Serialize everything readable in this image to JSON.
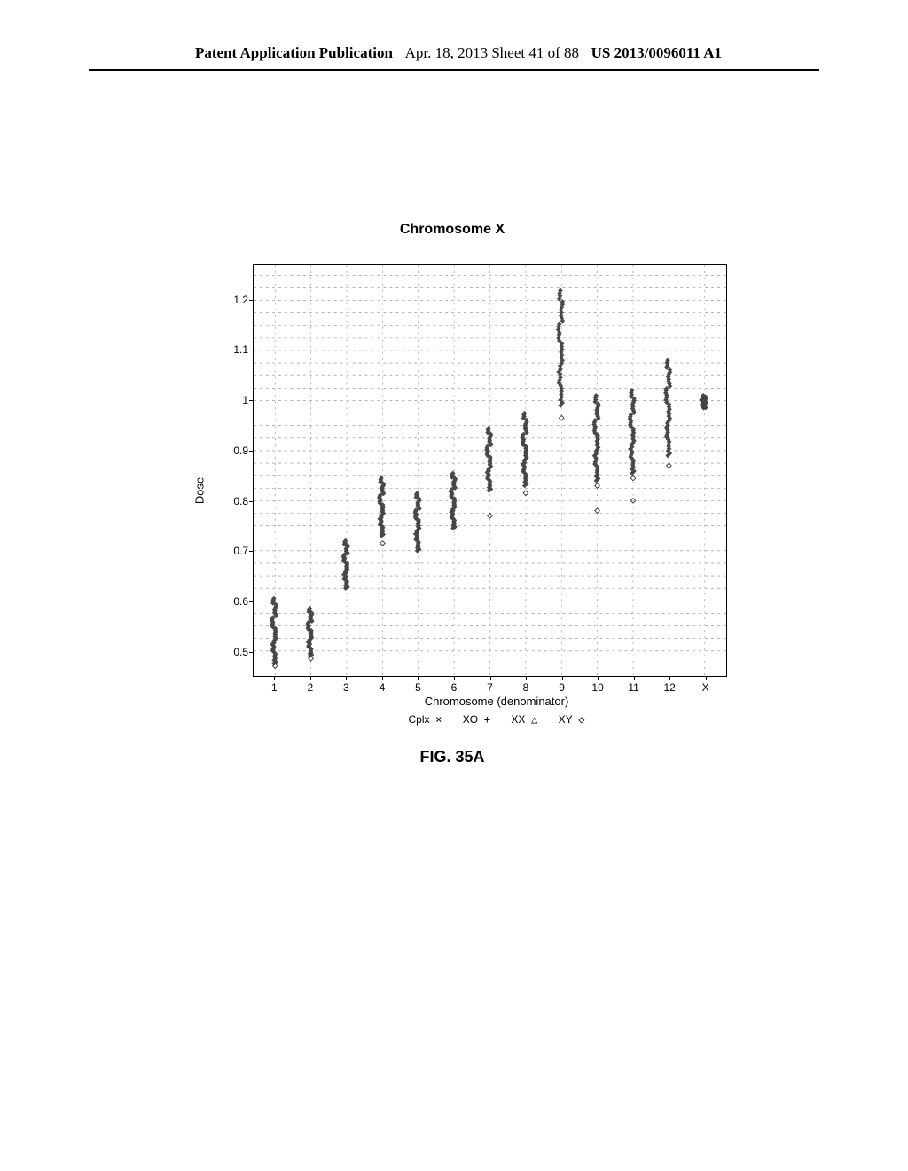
{
  "header": {
    "left": "Patent Application Publication",
    "mid": "Apr. 18, 2013  Sheet 41 of 88",
    "right": "US 2013/0096011 A1"
  },
  "chart": {
    "type": "scatter",
    "title": "Chromosome X",
    "ylabel": "Dose",
    "xlabel": "Chromosome (denominator)",
    "ylim": [
      0.45,
      1.27
    ],
    "yticks": [
      0.5,
      0.6,
      0.7,
      0.8,
      0.9,
      1,
      1.1,
      1.2
    ],
    "xcats": [
      "1",
      "2",
      "3",
      "4",
      "5",
      "6",
      "7",
      "8",
      "9",
      "10",
      "11",
      "12",
      "X"
    ],
    "grid_h_step": 0.025,
    "grid_color": "#888888",
    "border_color": "#000000",
    "marker_color": "#4a4a4a",
    "marker_stroke": "#333333",
    "columns": [
      {
        "x": "1",
        "lo": 0.475,
        "hi": 0.605,
        "outlier": 0.47
      },
      {
        "x": "2",
        "lo": 0.49,
        "hi": 0.585,
        "outlier": 0.485
      },
      {
        "x": "3",
        "lo": 0.625,
        "hi": 0.72
      },
      {
        "x": "4",
        "lo": 0.73,
        "hi": 0.845,
        "outlier": 0.715
      },
      {
        "x": "5",
        "lo": 0.7,
        "hi": 0.815
      },
      {
        "x": "6",
        "lo": 0.745,
        "hi": 0.855
      },
      {
        "x": "7",
        "lo": 0.82,
        "hi": 0.945,
        "outlier": 0.77
      },
      {
        "x": "8",
        "lo": 0.83,
        "hi": 0.975,
        "outlier": 0.815
      },
      {
        "x": "9",
        "lo": 0.99,
        "hi": 1.22,
        "outlier": 0.965
      },
      {
        "x": "10",
        "lo": 0.84,
        "hi": 1.01,
        "outliers": [
          0.78,
          0.83
        ]
      },
      {
        "x": "11",
        "lo": 0.855,
        "hi": 1.02,
        "outliers": [
          0.8,
          0.845
        ]
      },
      {
        "x": "12",
        "lo": 0.89,
        "hi": 1.08,
        "outlier": 0.87
      },
      {
        "x": "X",
        "lo": 0.985,
        "hi": 1.01
      }
    ],
    "legend": [
      {
        "label": "Cplx",
        "sym": "×"
      },
      {
        "label": "XO",
        "sym": "+"
      },
      {
        "label": "XX",
        "sym": "△"
      },
      {
        "label": "XY",
        "sym": "◇"
      }
    ],
    "points_per_col": 42,
    "title_fontsize": 16,
    "label_fontsize": 13
  },
  "caption": "FIG. 35A"
}
